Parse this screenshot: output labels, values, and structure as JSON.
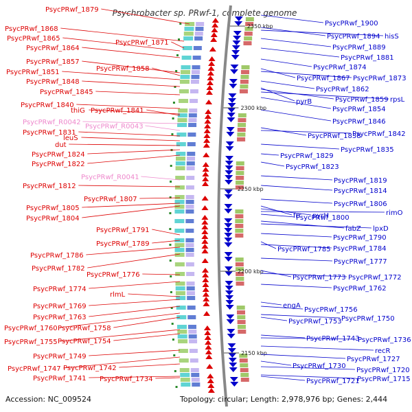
{
  "title": "Psychrobacter sp. PRwf-1, complete genome",
  "footer": {
    "accession": "Accession: NC_009524",
    "topology": "Topology: circular; Length: 2,978,976 bp; Genes: 2,444"
  },
  "colors": {
    "plus": "#dd0000",
    "minus": "#0000cc",
    "rna": "#ee88cc",
    "backbone": "#888888"
  },
  "scale_marks": [
    {
      "label": "2350 kbp"
    },
    {
      "label": "2300 kbp"
    },
    {
      "label": "2250 kbp"
    },
    {
      "label": "2200 kbp"
    },
    {
      "label": "2150 kbp"
    }
  ],
  "left_labels": [
    {
      "text": "PsycPRwf_1879",
      "kind": "gene"
    },
    {
      "text": "PsycPRwf_1868",
      "kind": "gene"
    },
    {
      "text": "PsycPRwf_1865",
      "kind": "gene"
    },
    {
      "text": "PsycPRwf_1864",
      "kind": "gene"
    },
    {
      "text": "PsycPRwf_1871",
      "kind": "gene"
    },
    {
      "text": "PsycPRwf_1857",
      "kind": "gene"
    },
    {
      "text": "PsycPRwf_1858",
      "kind": "gene"
    },
    {
      "text": "PsycPRwf_1851",
      "kind": "gene"
    },
    {
      "text": "PsycPRwf_1848",
      "kind": "gene"
    },
    {
      "text": "PsycPRwf_1845",
      "kind": "gene"
    },
    {
      "text": "PsycPRwf_1840",
      "kind": "gene"
    },
    {
      "text": "thiG",
      "kind": "gene"
    },
    {
      "text": "PsycPRwf_1841",
      "kind": "gene"
    },
    {
      "text": "PsycPRwf_R0042",
      "kind": "rna"
    },
    {
      "text": "PsycPRwf_R0043",
      "kind": "rna"
    },
    {
      "text": "PsycPRwf_1831",
      "kind": "gene"
    },
    {
      "text": "leuS",
      "kind": "gene"
    },
    {
      "text": "dut",
      "kind": "gene"
    },
    {
      "text": "PsycPRwf_1824",
      "kind": "gene"
    },
    {
      "text": "PsycPRwf_1822",
      "kind": "gene"
    },
    {
      "text": "PsycPRwf_R0041",
      "kind": "rna"
    },
    {
      "text": "PsycPRwf_1812",
      "kind": "gene"
    },
    {
      "text": "PsycPRwf_1807",
      "kind": "gene"
    },
    {
      "text": "PsycPRwf_1805",
      "kind": "gene"
    },
    {
      "text": "PsycPRwf_1804",
      "kind": "gene"
    },
    {
      "text": "PsycPRwf_1791",
      "kind": "gene"
    },
    {
      "text": "PsycPRwf_1789",
      "kind": "gene"
    },
    {
      "text": "PsycPRwf_1786",
      "kind": "gene"
    },
    {
      "text": "PsycPRwf_1782",
      "kind": "gene"
    },
    {
      "text": "PsycPRwf_1776",
      "kind": "gene"
    },
    {
      "text": "PsycPRwf_1774",
      "kind": "gene"
    },
    {
      "text": "rlmL",
      "kind": "gene"
    },
    {
      "text": "PsycPRwf_1769",
      "kind": "gene"
    },
    {
      "text": "PsycPRwf_1763",
      "kind": "gene"
    },
    {
      "text": "PsycPRwf_1760",
      "kind": "gene"
    },
    {
      "text": "PsycPRwf_1758",
      "kind": "gene"
    },
    {
      "text": "PsycPRwf_1755",
      "kind": "gene"
    },
    {
      "text": "PsycPRwf_1754",
      "kind": "gene"
    },
    {
      "text": "PsycPRwf_1749",
      "kind": "gene"
    },
    {
      "text": "PsycPRwf_1747",
      "kind": "gene"
    },
    {
      "text": "PsycPRwf_1742",
      "kind": "gene"
    },
    {
      "text": "PsycPRwf_1741",
      "kind": "gene"
    },
    {
      "text": "PsycPRwf_1734",
      "kind": "gene"
    }
  ],
  "right_labels": [
    {
      "text": "PsycPRwf_1900"
    },
    {
      "text": "PsycPRwf_1894"
    },
    {
      "text": "hisS"
    },
    {
      "text": "PsycPRwf_1889"
    },
    {
      "text": "PsycPRwf_1881"
    },
    {
      "text": "PsycPRwf_1874"
    },
    {
      "text": "PsycPRwf_1867"
    },
    {
      "text": "PsycPRwf_1873"
    },
    {
      "text": "PsycPRwf_1862"
    },
    {
      "text": "pyrB"
    },
    {
      "text": "PsycPRwf_1859"
    },
    {
      "text": "rpsL"
    },
    {
      "text": "PsycPRwf_1854"
    },
    {
      "text": "PsycPRwf_1846"
    },
    {
      "text": "PsycPRwf_1838"
    },
    {
      "text": "PsycPRwf_1842"
    },
    {
      "text": "PsycPRwf_1835"
    },
    {
      "text": "PsycPRwf_1829"
    },
    {
      "text": "PsycPRwf_1823"
    },
    {
      "text": "PsycPRwf_1819"
    },
    {
      "text": "PsycPRwf_1814"
    },
    {
      "text": "PsycPRwf_1806"
    },
    {
      "text": "frr"
    },
    {
      "text": "pyrH"
    },
    {
      "text": "rimO"
    },
    {
      "text": "PsycPRwf_1800"
    },
    {
      "text": "fabZ"
    },
    {
      "text": "lpxD"
    },
    {
      "text": "PsycPRwf_1790"
    },
    {
      "text": "PsycPRwf_1785"
    },
    {
      "text": "PsycPRwf_1784"
    },
    {
      "text": "PsycPRwf_1777"
    },
    {
      "text": "PsycPRwf_1773"
    },
    {
      "text": "PsycPRwf_1772"
    },
    {
      "text": "PsycPRwf_1762"
    },
    {
      "text": "engA"
    },
    {
      "text": "PsycPRwf_1756"
    },
    {
      "text": "PsycPRwf_1753"
    },
    {
      "text": "PsycPRwf_1750"
    },
    {
      "text": "PsycPRwf_1743"
    },
    {
      "text": "PsycPRwf_1736"
    },
    {
      "text": "recR"
    },
    {
      "text": "PsycPRwf_1727"
    },
    {
      "text": "PsycPRwf_1730"
    },
    {
      "text": "PsycPRwf_1720"
    },
    {
      "text": "PsycPRwf_1721"
    },
    {
      "text": "PsycPRwf_1715"
    }
  ]
}
